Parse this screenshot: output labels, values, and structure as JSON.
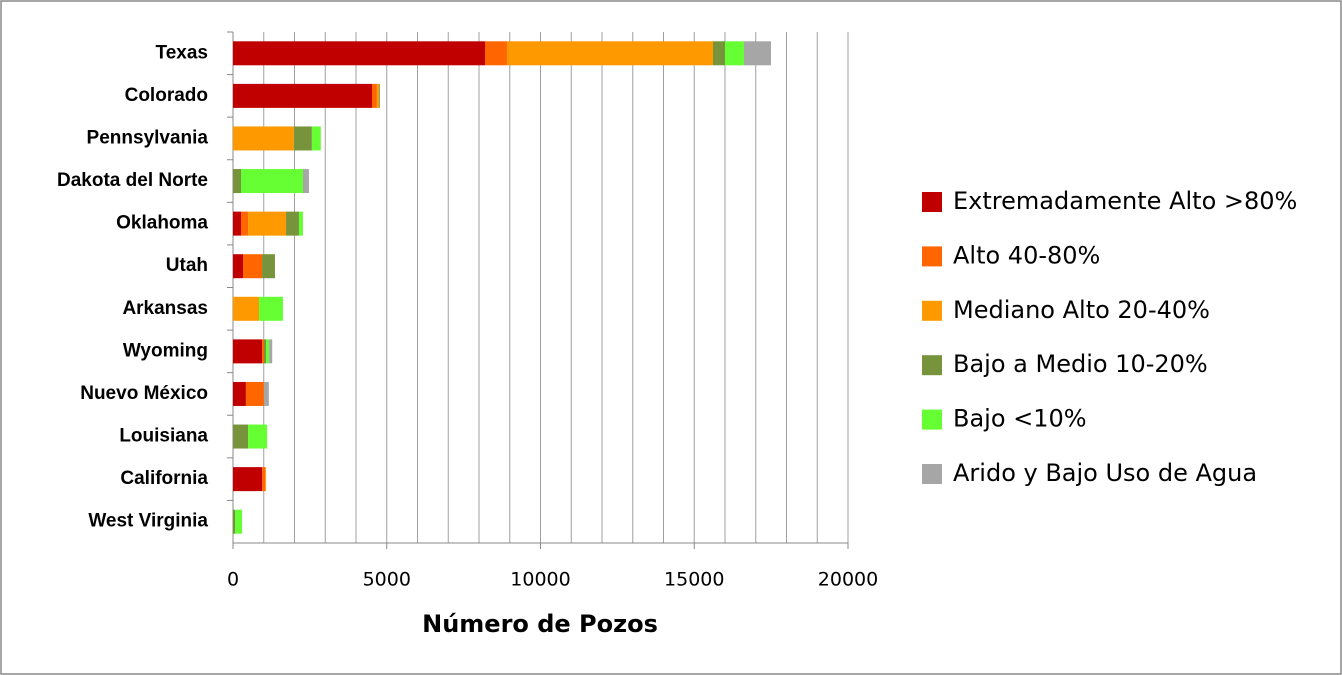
{
  "chart_data": {
    "type": "stacked_barh",
    "x_label": "Número de Pozos",
    "categories": [
      "Texas",
      "Colorado",
      "Pennsylvania",
      "Dakota del Norte",
      "Oklahoma",
      "Utah",
      "Arkansas",
      "Wyoming",
      "Nuevo México",
      "Louisiana",
      "California",
      "West Virginia"
    ],
    "series": [
      {
        "name": "Extremadamente Alto >80%",
        "color": "#c00000",
        "values": [
          8195,
          4520,
          0,
          0,
          260,
          325,
          0,
          945,
          420,
          0,
          945,
          0
        ]
      },
      {
        "name": "Alto 40-80%",
        "color": "#ff6600",
        "values": [
          715,
          160,
          0,
          0,
          230,
          620,
          0,
          65,
          585,
          0,
          100,
          0
        ]
      },
      {
        "name": "Mediano Alto 20-40%",
        "color": "#ff9900",
        "values": [
          6700,
          65,
          1980,
          0,
          1235,
          0,
          845,
          0,
          0,
          0,
          30,
          0
        ]
      },
      {
        "name": "Bajo a Medio 10-20%",
        "color": "#77933c",
        "values": [
          390,
          30,
          585,
          260,
          420,
          420,
          0,
          65,
          0,
          490,
          0,
          65
        ]
      },
      {
        "name": "Bajo <10%",
        "color": "#66ff33",
        "values": [
          618,
          0,
          290,
          2015,
          130,
          0,
          780,
          100,
          0,
          620,
          0,
          230
        ]
      },
      {
        "name": "Arido y Bajo Uso de Agua",
        "color": "#a6a6a6",
        "values": [
          878,
          0,
          0,
          195,
          0,
          0,
          0,
          100,
          160,
          0,
          0,
          0
        ]
      }
    ],
    "xlim": [
      0,
      20000
    ],
    "xticks": [
      0,
      5000,
      10000,
      15000,
      20000
    ],
    "xgrid": [
      1000,
      2000,
      3000,
      4000,
      5000,
      6000,
      7000,
      8000,
      9000,
      10000,
      11000,
      12000,
      13000,
      14000,
      15000,
      16000,
      17000,
      18000,
      19000,
      20000
    ],
    "legend": "right"
  }
}
